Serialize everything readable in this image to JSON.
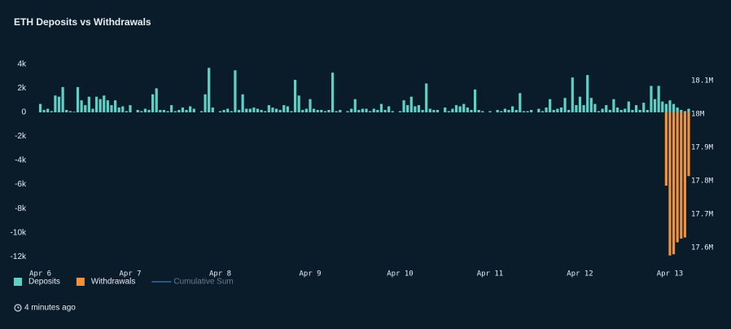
{
  "chart_data": {
    "type": "bar",
    "title": "ETH Deposits vs Withdrawals",
    "footer": "4 minutes ago",
    "categories": [
      "Apr 6",
      null,
      null,
      null,
      null,
      null,
      null,
      null,
      null,
      null,
      null,
      null,
      null,
      null,
      null,
      null,
      null,
      null,
      null,
      null,
      null,
      null,
      null,
      null,
      "Apr 7",
      null,
      null,
      null,
      null,
      null,
      null,
      null,
      null,
      null,
      null,
      null,
      null,
      null,
      null,
      null,
      null,
      null,
      null,
      null,
      null,
      null,
      null,
      null,
      "Apr 8",
      null,
      null,
      null,
      null,
      null,
      null,
      null,
      null,
      null,
      null,
      null,
      null,
      null,
      null,
      null,
      null,
      null,
      null,
      null,
      null,
      null,
      null,
      null,
      "Apr 9",
      null,
      null,
      null,
      null,
      null,
      null,
      null,
      null,
      null,
      null,
      null,
      null,
      null,
      null,
      null,
      null,
      null,
      null,
      null,
      null,
      null,
      null,
      null,
      "Apr 10",
      null,
      null,
      null,
      null,
      null,
      null,
      null,
      null,
      null,
      null,
      null,
      null,
      null,
      null,
      null,
      null,
      null,
      null,
      null,
      null,
      null,
      null,
      null,
      "Apr 11",
      null,
      null,
      null,
      null,
      null,
      null,
      null,
      null,
      null,
      null,
      null,
      null,
      null,
      null,
      null,
      null,
      null,
      null,
      null,
      null,
      null,
      null,
      null,
      "Apr 12",
      null,
      null,
      null,
      null,
      null,
      null,
      null,
      null,
      null,
      null,
      null,
      null,
      null,
      null,
      null,
      null,
      null,
      null,
      null,
      null,
      null,
      null,
      null,
      "Apr 13",
      null,
      null,
      null,
      null,
      null
    ],
    "series": [
      {
        "name": "Deposits",
        "color": "#5fd0c6",
        "values": [
          700,
          200,
          300,
          100,
          1400,
          1300,
          2100,
          200,
          100,
          50,
          2100,
          1000,
          600,
          1300,
          300,
          1300,
          1100,
          1400,
          1000,
          600,
          1000,
          400,
          500,
          100,
          600,
          0,
          200,
          100,
          300,
          200,
          1500,
          2000,
          200,
          200,
          100,
          600,
          100,
          200,
          400,
          200,
          500,
          300,
          0,
          100,
          1500,
          3700,
          400,
          0,
          100,
          200,
          300,
          100,
          3500,
          200,
          1500,
          300,
          300,
          400,
          300,
          200,
          100,
          600,
          400,
          300,
          200,
          600,
          500,
          100,
          2700,
          1400,
          200,
          300,
          1100,
          300,
          200,
          200,
          100,
          200,
          3300,
          100,
          200,
          0,
          100,
          300,
          1100,
          200,
          300,
          300,
          100,
          300,
          200,
          700,
          200,
          500,
          100,
          0,
          100,
          1000,
          600,
          1300,
          500,
          600,
          200,
          2400,
          300,
          200,
          200,
          0,
          400,
          100,
          300,
          600,
          500,
          700,
          400,
          200,
          1900,
          200,
          100,
          0,
          100,
          0,
          200,
          100,
          300,
          200,
          500,
          200,
          1600,
          100,
          100,
          200,
          0,
          300,
          100,
          400,
          1100,
          200,
          300,
          400,
          1200,
          200,
          2900,
          600,
          1300,
          600,
          3100,
          1200,
          700,
          100,
          300,
          600,
          200,
          1100,
          400,
          200,
          300,
          900,
          200,
          600,
          200,
          800,
          200,
          2200,
          1100,
          2200,
          900,
          700,
          1000,
          700,
          400,
          200,
          100,
          300
        ]
      },
      {
        "name": "Withdrawals",
        "color": "#f0923c",
        "values": [
          0,
          0,
          0,
          0,
          0,
          0,
          0,
          0,
          0,
          0,
          0,
          0,
          0,
          0,
          0,
          0,
          0,
          0,
          0,
          0,
          0,
          0,
          0,
          0,
          0,
          0,
          0,
          0,
          0,
          0,
          0,
          0,
          0,
          0,
          0,
          0,
          0,
          0,
          0,
          0,
          0,
          0,
          0,
          0,
          0,
          0,
          0,
          0,
          0,
          0,
          0,
          0,
          0,
          0,
          0,
          0,
          0,
          0,
          0,
          0,
          0,
          0,
          0,
          0,
          0,
          0,
          0,
          0,
          0,
          0,
          0,
          0,
          0,
          0,
          0,
          0,
          0,
          0,
          0,
          0,
          0,
          0,
          0,
          0,
          0,
          0,
          0,
          0,
          0,
          0,
          0,
          0,
          0,
          0,
          0,
          0,
          0,
          0,
          0,
          0,
          0,
          0,
          0,
          0,
          0,
          0,
          0,
          0,
          0,
          0,
          0,
          0,
          0,
          0,
          0,
          0,
          0,
          0,
          0,
          0,
          0,
          0,
          0,
          0,
          0,
          0,
          0,
          0,
          0,
          0,
          0,
          0,
          0,
          0,
          0,
          0,
          0,
          0,
          0,
          0,
          0,
          0,
          0,
          0,
          0,
          0,
          0,
          0,
          0,
          0,
          0,
          0,
          0,
          0,
          0,
          0,
          0,
          0,
          0,
          0,
          0,
          0,
          0,
          0,
          0,
          0,
          0,
          -6100,
          -11900,
          -11800,
          -10800,
          -10500,
          -10400,
          -5300
        ]
      },
      {
        "name": "Cumulative Sum",
        "color": "#2b6cb0",
        "axis": "y2",
        "hidden": true
      }
    ],
    "ylim": [
      -13000,
      4600
    ],
    "yticks": [
      {
        "value": 4000,
        "label": "4k"
      },
      {
        "value": 2000,
        "label": "2k"
      },
      0,
      {
        "value": -2000,
        "label": "-2k"
      },
      {
        "value": -4000,
        "label": "-4k"
      },
      {
        "value": -6000,
        "label": "-6k"
      },
      {
        "value": -8000,
        "label": "-8k"
      },
      {
        "value": -10000,
        "label": "-10k"
      },
      {
        "value": -12000,
        "label": "-12k"
      }
    ],
    "y2lim": [
      17537000,
      18171000
    ],
    "y2ticks": [
      {
        "value": 18100000,
        "label": "18.1M"
      },
      {
        "value": 18000000,
        "label": "18M"
      },
      {
        "value": 17900000,
        "label": "17.9M"
      },
      {
        "value": 17800000,
        "label": "17.8M"
      },
      {
        "value": 17700000,
        "label": "17.7M"
      },
      {
        "value": 17600000,
        "label": "17.6M"
      }
    ],
    "legend": "bottom-left"
  }
}
